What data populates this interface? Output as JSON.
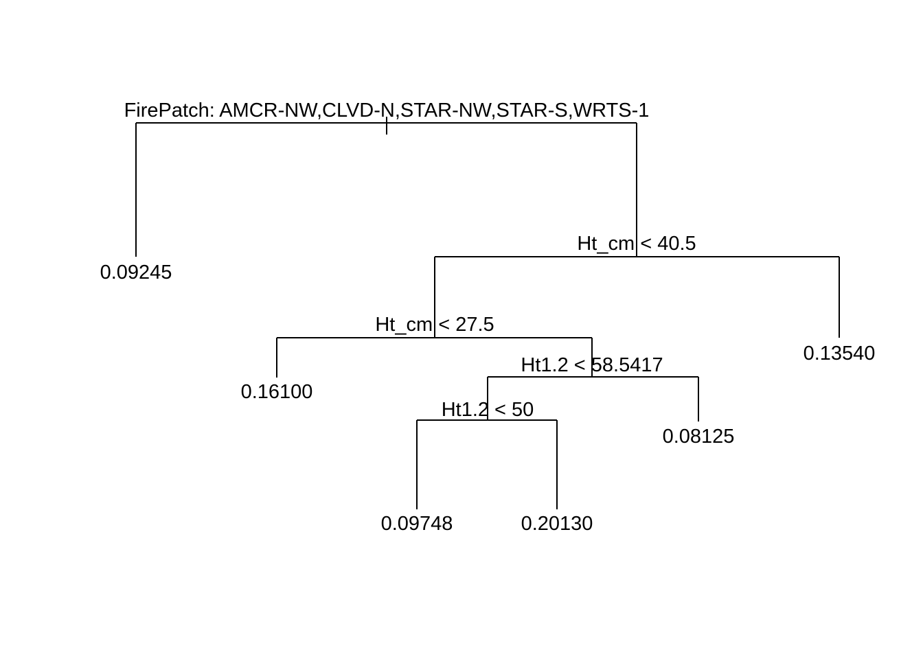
{
  "tree": {
    "root": {
      "split": "FirePatch: AMCR-NW,CLVD-N,STAR-NW,STAR-S,WRTS-1",
      "left": {
        "leaf": "0.09245"
      },
      "right": {
        "split": "Ht_cm < 40.5",
        "left": {
          "split": "Ht_cm < 27.5",
          "left": {
            "leaf": "0.16100"
          },
          "right": {
            "split": "Ht1.2 < 58.5417",
            "left": {
              "split": "Ht1.2 < 50",
              "left": {
                "leaf": "0.09748"
              },
              "right": {
                "leaf": "0.20130"
              }
            },
            "right": {
              "leaf": "0.08125"
            }
          }
        },
        "right": {
          "leaf": "0.13540"
        }
      }
    }
  }
}
